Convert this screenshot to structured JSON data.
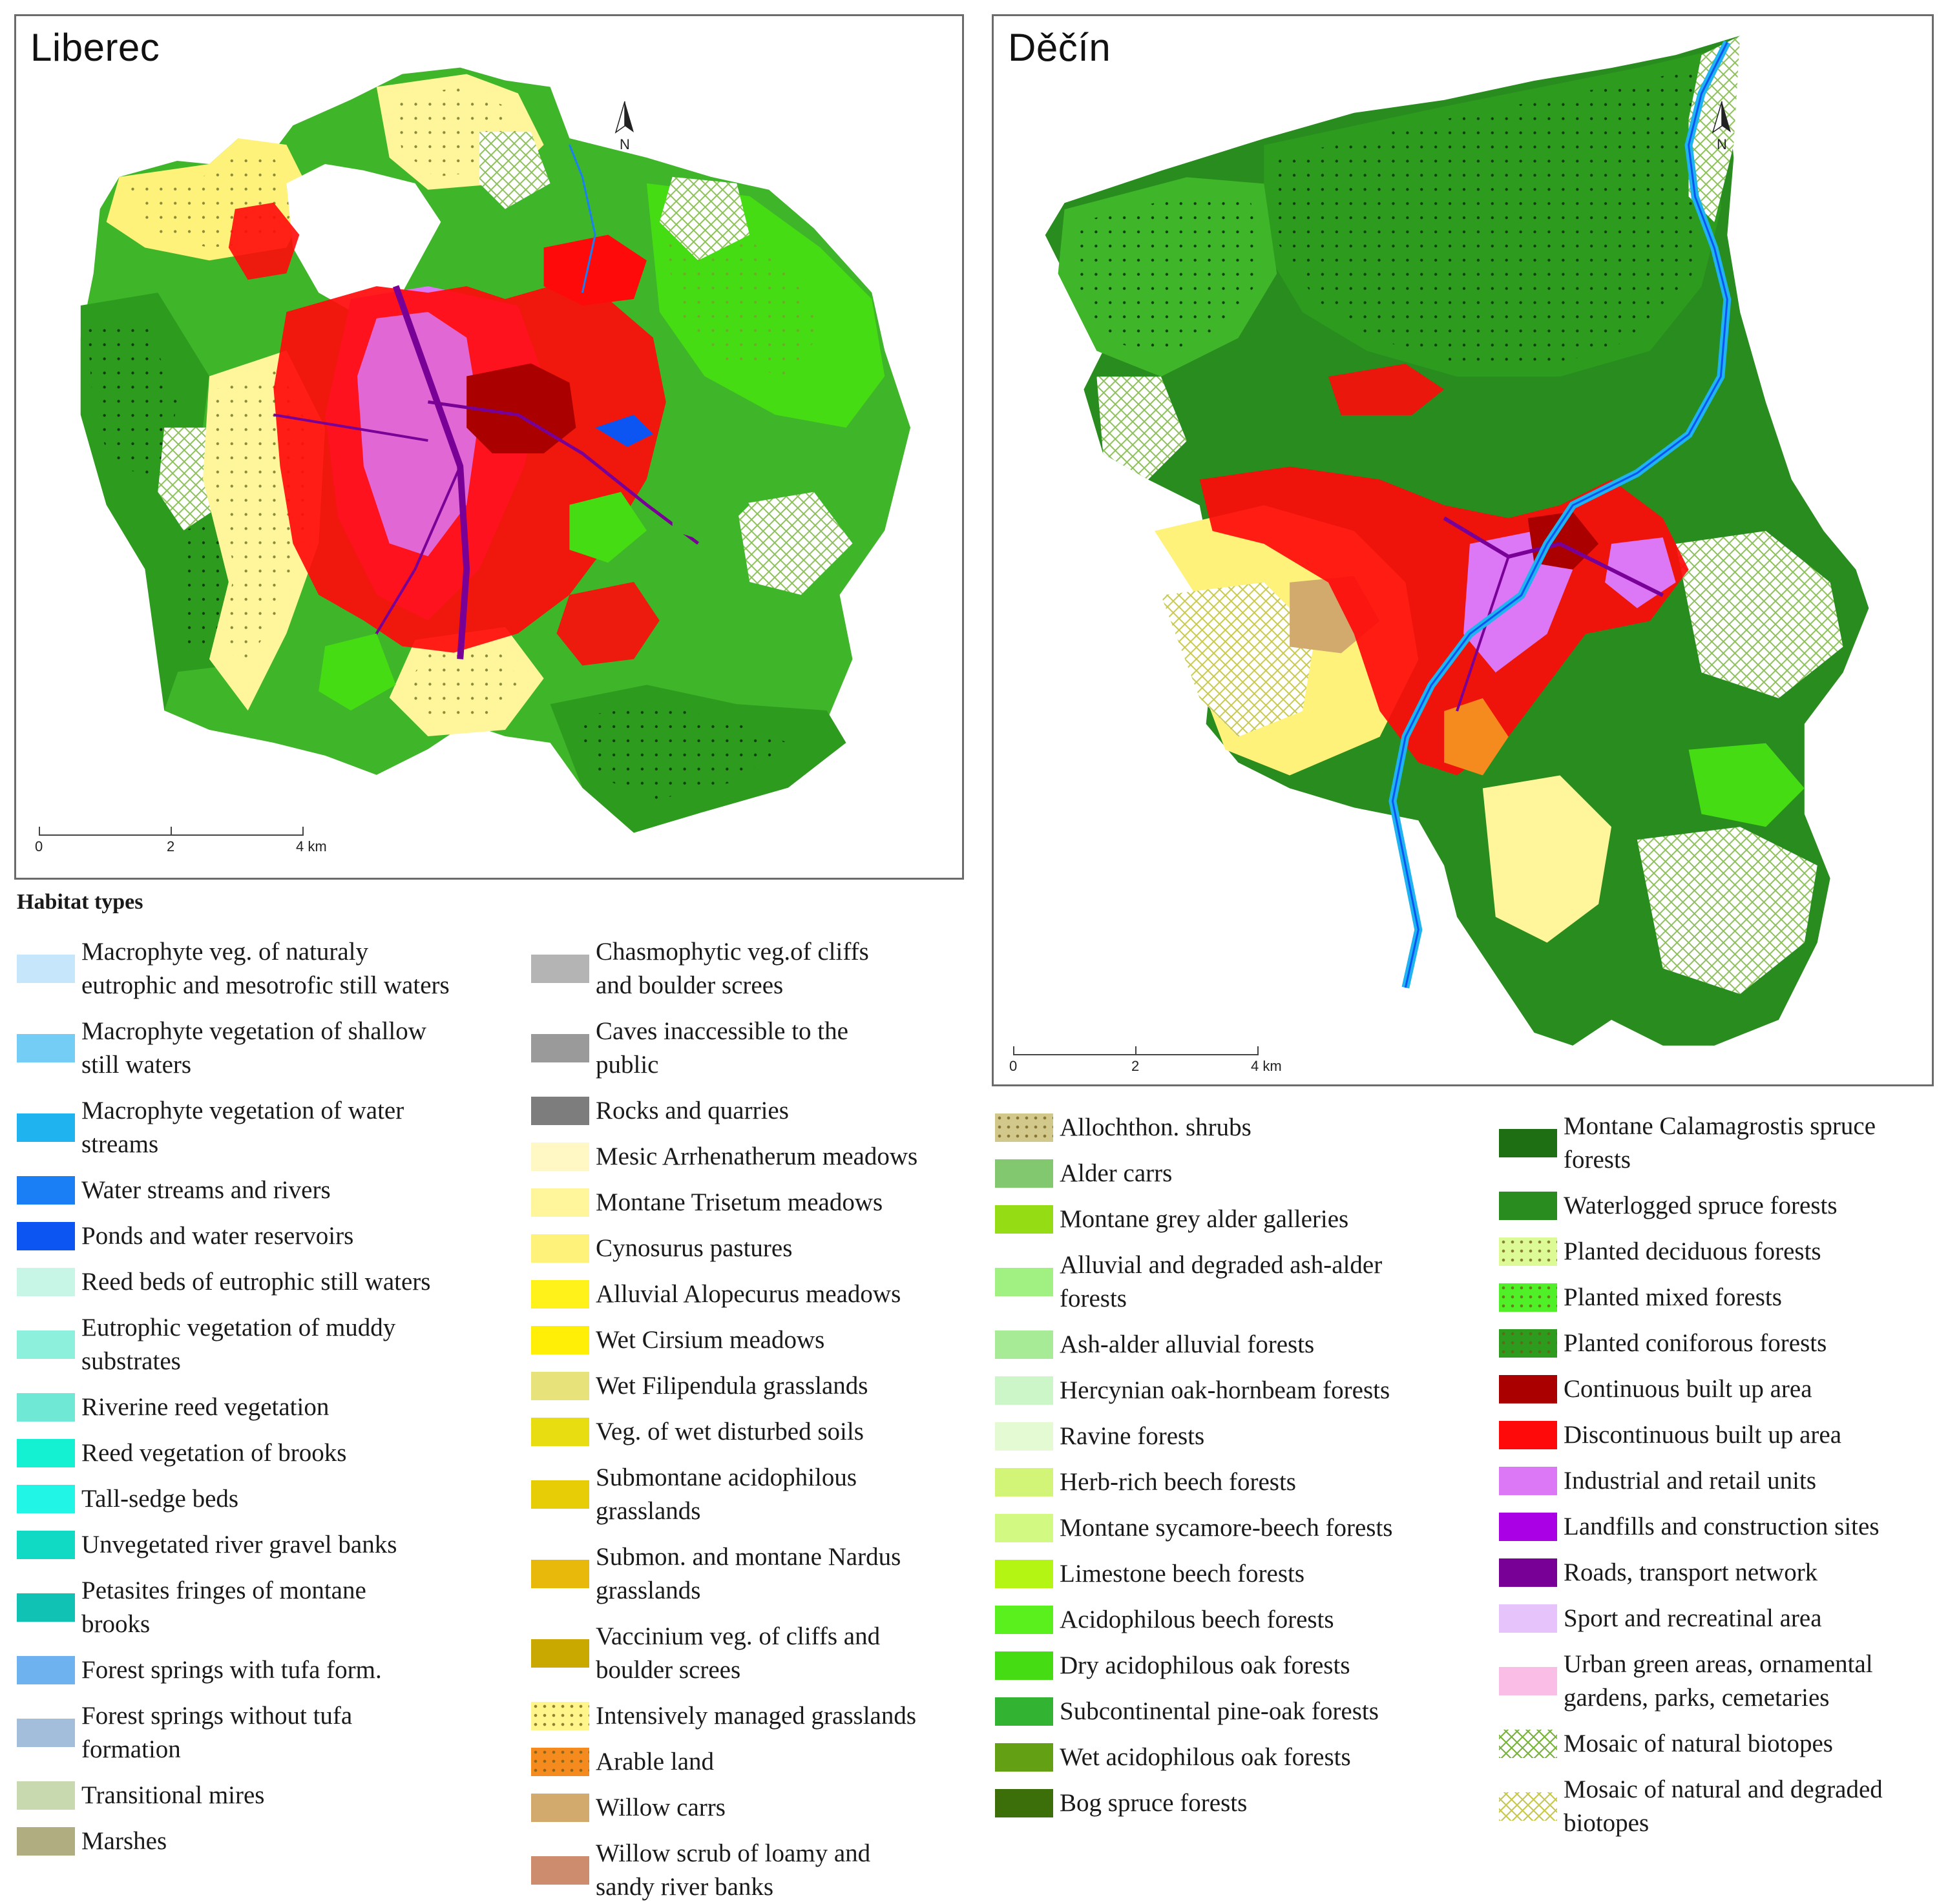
{
  "maps": {
    "liberec": {
      "title": "Liberec",
      "north_label": "N",
      "scale": {
        "ticks": [
          "0",
          "2",
          "4 km"
        ]
      }
    },
    "decin": {
      "title": "Děčín",
      "north_label": "N",
      "scale": {
        "ticks": [
          "0",
          "2",
          "4 km"
        ]
      }
    }
  },
  "legend": {
    "title": "Habitat types",
    "columns": [
      [
        {
          "lines": [
            "Macrophyte veg. of naturaly",
            "eutrophic and mesotrofic still waters"
          ],
          "color": "#c6e7fb",
          "pattern": "solid"
        },
        {
          "lines": [
            "Macrophyte vegetation of shallow",
            "still waters"
          ],
          "color": "#74cdf5",
          "pattern": "solid"
        },
        {
          "lines": [
            "Macrophyte vegetation of water",
            "streams"
          ],
          "color": "#1fb3f0",
          "pattern": "solid"
        },
        {
          "lines": [
            "Water streams and rivers"
          ],
          "color": "#1a7ef5",
          "pattern": "solid"
        },
        {
          "lines": [
            "Ponds and water reservoirs"
          ],
          "color": "#0d55f2",
          "pattern": "solid"
        },
        {
          "lines": [
            "Reed beds of eutrophic still waters"
          ],
          "color": "#c7f5e6",
          "pattern": "solid"
        },
        {
          "lines": [
            "Eutrophic vegetation of muddy",
            "substrates"
          ],
          "color": "#8cf0dc",
          "pattern": "solid"
        },
        {
          "lines": [
            "Riverine reed vegetation"
          ],
          "color": "#6fe8d6",
          "pattern": "solid"
        },
        {
          "lines": [
            "Reed vegetation of brooks"
          ],
          "color": "#14f0d2",
          "pattern": "solid"
        },
        {
          "lines": [
            "Tall-sedge beds"
          ],
          "color": "#20f5e6",
          "pattern": "solid"
        },
        {
          "lines": [
            "Unvegetated river gravel banks"
          ],
          "color": "#10d9c4",
          "pattern": "solid"
        },
        {
          "lines": [
            "Petasites fringes of montane",
            "brooks"
          ],
          "color": "#10c2b4",
          "pattern": "solid"
        },
        {
          "lines": [
            "Forest springs with tufa form."
          ],
          "color": "#6eb2f0",
          "pattern": "solid"
        },
        {
          "lines": [
            "Forest springs without tufa",
            "formation"
          ],
          "color": "#a3bedb",
          "pattern": "solid"
        },
        {
          "lines": [
            "Transitional mires"
          ],
          "color": "#c8d9b0",
          "pattern": "solid"
        },
        {
          "lines": [
            "Marshes"
          ],
          "color": "#b0ad80",
          "pattern": "solid"
        }
      ],
      [
        {
          "lines": [
            "Chasmophytic veg.of cliffs",
            "and boulder screes"
          ],
          "color": "#b4b4b4",
          "pattern": "solid"
        },
        {
          "lines": [
            "Caves inaccessible to the",
            "public"
          ],
          "color": "#9a9a9a",
          "pattern": "solid"
        },
        {
          "lines": [
            "Rocks and quarries"
          ],
          "color": "#7d7d7d",
          "pattern": "solid"
        },
        {
          "lines": [
            "Mesic Arrhenatherum meadows"
          ],
          "color": "#fff8c4",
          "pattern": "solid"
        },
        {
          "lines": [
            "Montane Trisetum meadows"
          ],
          "color": "#fff59a",
          "pattern": "solid"
        },
        {
          "lines": [
            "Cynosurus pastures"
          ],
          "color": "#fff27a",
          "pattern": "solid"
        },
        {
          "lines": [
            "Alluvial Alopecurus meadows"
          ],
          "color": "#fff21a",
          "pattern": "solid"
        },
        {
          "lines": [
            "Wet Cirsium meadows"
          ],
          "color": "#ffee05",
          "pattern": "solid"
        },
        {
          "lines": [
            "Wet Filipendula grasslands"
          ],
          "color": "#e8e27a",
          "pattern": "solid"
        },
        {
          "lines": [
            "Veg. of wet disturbed soils"
          ],
          "color": "#e8dd10",
          "pattern": "solid"
        },
        {
          "lines": [
            "Submontane acidophilous",
            "grasslands"
          ],
          "color": "#e6cd05",
          "pattern": "solid"
        },
        {
          "lines": [
            "Submon. and montane Nardus",
            "grasslands"
          ],
          "color": "#e8b90a",
          "pattern": "solid"
        },
        {
          "lines": [
            "Vaccinium veg. of cliffs and",
            "boulder screes"
          ],
          "color": "#c9a800",
          "pattern": "solid"
        },
        {
          "lines": [
            "Intensively managed grasslands"
          ],
          "color": "#fff58a",
          "pattern": "dots"
        },
        {
          "lines": [
            "Arable land"
          ],
          "color": "#f58a1e",
          "pattern": "dots"
        },
        {
          "lines": [
            "Willow carrs"
          ],
          "color": "#d2aa6e",
          "pattern": "solid"
        },
        {
          "lines": [
            "Willow scrub of loamy and",
            "sandy river banks"
          ],
          "color": "#cd8c6e",
          "pattern": "solid"
        }
      ],
      [
        {
          "lines": [
            "Allochthon. shrubs"
          ],
          "color": "#d2c88c",
          "pattern": "dots"
        },
        {
          "lines": [
            "Alder carrs"
          ],
          "color": "#82c86e",
          "pattern": "solid"
        },
        {
          "lines": [
            "Montane grey alder galleries"
          ],
          "color": "#96dc14",
          "pattern": "solid"
        },
        {
          "lines": [
            "Alluvial and degraded  ash-alder",
            "forests"
          ],
          "color": "#a0f082",
          "pattern": "solid"
        },
        {
          "lines": [
            "Ash-alder alluvial forests"
          ],
          "color": "#a8eb96",
          "pattern": "solid"
        },
        {
          "lines": [
            "Hercynian oak-hornbeam forests"
          ],
          "color": "#ccf5c8",
          "pattern": "solid"
        },
        {
          "lines": [
            "Ravine forests"
          ],
          "color": "#e4fad2",
          "pattern": "solid"
        },
        {
          "lines": [
            "Herb-rich beech forests"
          ],
          "color": "#d2f578",
          "pattern": "solid"
        },
        {
          "lines": [
            "Montane sycamore-beech forests"
          ],
          "color": "#d2fa82",
          "pattern": "solid"
        },
        {
          "lines": [
            "Limestone beech forests"
          ],
          "color": "#b4f514",
          "pattern": "solid"
        },
        {
          "lines": [
            "Acidophilous beech forests"
          ],
          "color": "#5af01e",
          "pattern": "solid"
        },
        {
          "lines": [
            "Dry acidophilous oak forests"
          ],
          "color": "#46dc14",
          "pattern": "solid"
        },
        {
          "lines": [
            "Subcontinental pine-oak forests"
          ],
          "color": "#32b432",
          "pattern": "solid"
        },
        {
          "lines": [
            "Wet acidophilous oak forests"
          ],
          "color": "#64a014",
          "pattern": "solid"
        },
        {
          "lines": [
            "Bog spruce forests"
          ],
          "color": "#3c6e0a",
          "pattern": "solid"
        }
      ],
      [
        {
          "lines": [
            "Montane Calamagrostis spruce",
            "forests"
          ],
          "color": "#1e6e14",
          "pattern": "solid"
        },
        {
          "lines": [
            "Waterlogged spruce forests"
          ],
          "color": "#288c1e",
          "pattern": "solid"
        },
        {
          "lines": [
            "Planted deciduous forests"
          ],
          "color": "#dcfa96",
          "pattern": "dots"
        },
        {
          "lines": [
            "Planted mixed forests"
          ],
          "color": "#50f028",
          "pattern": "dots"
        },
        {
          "lines": [
            "Planted coniforous forests"
          ],
          "color": "#2d9b1e",
          "pattern": "dots"
        },
        {
          "lines": [
            "Continuous built up area"
          ],
          "color": "#aa0000",
          "pattern": "solid"
        },
        {
          "lines": [
            "Discontinuous built up area"
          ],
          "color": "#ff0a0a",
          "pattern": "solid"
        },
        {
          "lines": [
            "Industrial and retail units"
          ],
          "color": "#dc78f5",
          "pattern": "solid"
        },
        {
          "lines": [
            "Landfills and construction sites"
          ],
          "color": "#aa00e6",
          "pattern": "solid"
        },
        {
          "lines": [
            "Roads, transport network"
          ],
          "color": "#780096",
          "pattern": "solid"
        },
        {
          "lines": [
            "Sport and recreatinal area"
          ],
          "color": "#e6c3fa",
          "pattern": "solid"
        },
        {
          "lines": [
            "Urban green areas, ornamental",
            "gardens, parks, cemetaries"
          ],
          "color": "#fabee6",
          "pattern": "solid"
        },
        {
          "lines": [
            "Mosaic of natural biotopes"
          ],
          "color": "#78b43c",
          "pattern": "cross"
        },
        {
          "lines": [
            "Mosaic of natural and degraded",
            "biotopes"
          ],
          "color": "#c8c850",
          "pattern": "cross"
        }
      ]
    ]
  }
}
